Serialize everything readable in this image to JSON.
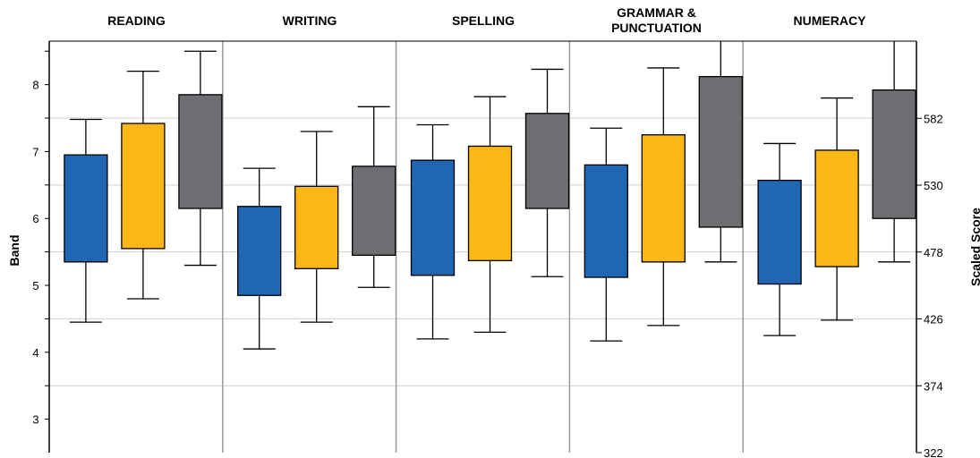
{
  "chart_data": {
    "type": "boxplot",
    "domains": [
      "READING",
      "WRITING",
      "SPELLING",
      "GRAMMAR & PUNCTUATION",
      "NUMERACY"
    ],
    "left_axis": {
      "label": "Band",
      "ticks": [
        "3",
        "4",
        "5",
        "6",
        "7",
        "8"
      ],
      "range": [
        2.5,
        8.65
      ]
    },
    "right_axis": {
      "label": "Scaled Score",
      "ticks": [
        "322",
        "374",
        "426",
        "478",
        "530",
        "582"
      ],
      "range": [
        322,
        642
      ]
    },
    "grid": true,
    "series_colors": [
      "#2066b2",
      "#fbb716",
      "#6d6e72"
    ],
    "boxes": [
      {
        "domain": "READING",
        "series": 0,
        "min": 4.45,
        "q1": 5.35,
        "q3": 6.95,
        "max": 7.48
      },
      {
        "domain": "READING",
        "series": 1,
        "min": 4.8,
        "q1": 5.55,
        "q3": 7.42,
        "max": 8.2
      },
      {
        "domain": "READING",
        "series": 2,
        "min": 5.3,
        "q1": 6.15,
        "q3": 7.85,
        "max": 8.5
      },
      {
        "domain": "WRITING",
        "series": 0,
        "min": 4.05,
        "q1": 4.85,
        "q3": 6.18,
        "max": 6.75
      },
      {
        "domain": "WRITING",
        "series": 1,
        "min": 4.45,
        "q1": 5.25,
        "q3": 6.48,
        "max": 7.3
      },
      {
        "domain": "WRITING",
        "series": 2,
        "min": 4.97,
        "q1": 5.45,
        "q3": 6.78,
        "max": 7.67
      },
      {
        "domain": "SPELLING",
        "series": 0,
        "min": 4.2,
        "q1": 5.15,
        "q3": 6.87,
        "max": 7.4
      },
      {
        "domain": "SPELLING",
        "series": 1,
        "min": 4.3,
        "q1": 5.37,
        "q3": 7.08,
        "max": 7.82
      },
      {
        "domain": "SPELLING",
        "series": 2,
        "min": 5.13,
        "q1": 6.15,
        "q3": 7.57,
        "max": 8.23
      },
      {
        "domain": "GRAMMAR & PUNCTUATION",
        "series": 0,
        "min": 4.17,
        "q1": 5.12,
        "q3": 6.8,
        "max": 7.35
      },
      {
        "domain": "GRAMMAR & PUNCTUATION",
        "series": 1,
        "min": 4.4,
        "q1": 5.35,
        "q3": 7.25,
        "max": 8.25
      },
      {
        "domain": "GRAMMAR & PUNCTUATION",
        "series": 2,
        "min": 5.35,
        "q1": 5.87,
        "q3": 8.12,
        "max": 8.65
      },
      {
        "domain": "NUMERACY",
        "series": 0,
        "min": 4.25,
        "q1": 5.02,
        "q3": 6.57,
        "max": 7.12
      },
      {
        "domain": "NUMERACY",
        "series": 1,
        "min": 4.48,
        "q1": 5.28,
        "q3": 7.02,
        "max": 7.8
      },
      {
        "domain": "NUMERACY",
        "series": 2,
        "min": 5.35,
        "q1": 6.0,
        "q3": 7.92,
        "max": 8.65
      }
    ]
  }
}
